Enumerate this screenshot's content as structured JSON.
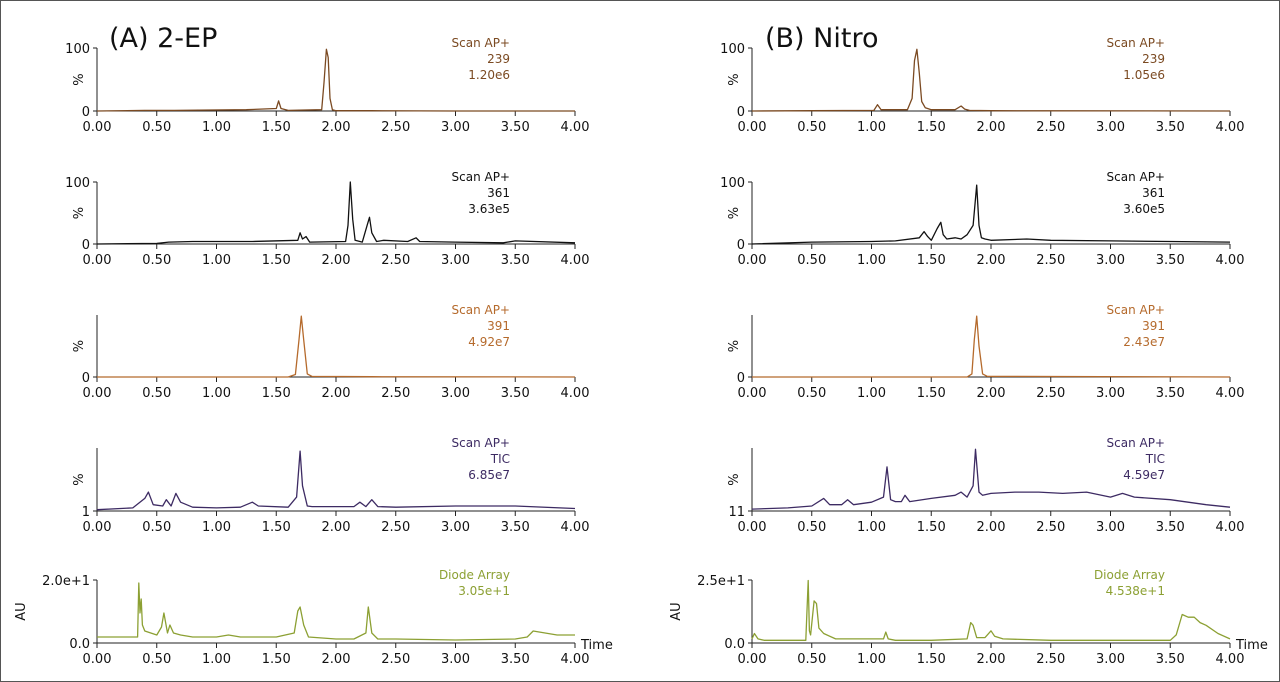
{
  "colors": {
    "brown": "#7b4a22",
    "black": "#111111",
    "orange": "#b56a2c",
    "purple": "#3d2b63",
    "olive": "#8ca033"
  },
  "panels": [
    {
      "title": "(A) 2-EP",
      "x_ticks": [
        "0.00",
        "0.50",
        "1.00",
        "1.50",
        "2.00",
        "2.50",
        "3.00",
        "3.50",
        "4.00"
      ],
      "time_label": "Time",
      "diode_ylabel": "AU"
    },
    {
      "title": "(B) Nitro",
      "x_ticks": [
        "0.00",
        "0.50",
        "1.00",
        "1.50",
        "2.00",
        "2.50",
        "3.00",
        "3.50",
        "4.00"
      ],
      "time_label": "Time",
      "diode_ylabel": "AU"
    }
  ],
  "chart_data": [
    {
      "type": "line",
      "panel": "A",
      "row": 0,
      "color": "brown",
      "info": [
        "Scan AP+",
        "239",
        "1.20e6"
      ],
      "ylabel": "%",
      "y_ticks": [
        "100",
        "0"
      ],
      "ylim": [
        0,
        100
      ],
      "xlim": [
        0,
        4
      ],
      "series": [
        {
          "x": [
            0,
            0.4,
            0.65,
            1.25,
            1.5,
            1.52,
            1.54,
            1.6,
            1.88,
            1.9,
            1.92,
            1.935,
            1.95,
            1.97,
            2.0,
            2.3,
            3.0,
            4.0
          ],
          "y": [
            0,
            1,
            1,
            2,
            4,
            16,
            4,
            1,
            2,
            45,
            98,
            85,
            20,
            2,
            0.5,
            0.5,
            0,
            0
          ]
        }
      ]
    },
    {
      "type": "line",
      "panel": "A",
      "row": 1,
      "color": "black",
      "info": [
        "Scan AP+",
        "361",
        "3.63e5"
      ],
      "ylabel": "%",
      "y_ticks": [
        "100",
        "0"
      ],
      "ylim": [
        0,
        100
      ],
      "xlim": [
        0,
        4
      ],
      "series": [
        {
          "x": [
            0,
            0.5,
            0.6,
            0.8,
            1.3,
            1.68,
            1.7,
            1.72,
            1.75,
            1.78,
            2.08,
            2.1,
            2.12,
            2.14,
            2.16,
            2.22,
            2.26,
            2.28,
            2.3,
            2.34,
            2.4,
            2.6,
            2.67,
            2.7,
            3.0,
            3.4,
            3.5,
            4.0
          ],
          "y": [
            0,
            1,
            3,
            4,
            4,
            6,
            18,
            8,
            12,
            3,
            4,
            30,
            100,
            40,
            6,
            3,
            30,
            43,
            18,
            4,
            6,
            4,
            10,
            4,
            3,
            2,
            5,
            2
          ]
        }
      ]
    },
    {
      "type": "line",
      "panel": "A",
      "row": 2,
      "color": "orange",
      "info": [
        "Scan AP+",
        "391",
        "4.92e7"
      ],
      "ylabel": "%",
      "y_ticks": [
        "0"
      ],
      "ylim": [
        0,
        100
      ],
      "xlim": [
        0,
        4
      ],
      "series": [
        {
          "x": [
            0,
            1.6,
            1.66,
            1.69,
            1.71,
            1.73,
            1.76,
            1.8,
            2.3,
            4.0
          ],
          "y": [
            0,
            0,
            4,
            60,
            98,
            60,
            5,
            1,
            0.5,
            0
          ]
        }
      ]
    },
    {
      "type": "line",
      "panel": "A",
      "row": 3,
      "color": "purple",
      "info": [
        "Scan AP+",
        "TIC",
        "6.85e7"
      ],
      "ylabel": "%",
      "y_ticks": [
        "1"
      ],
      "ylim": [
        0,
        100
      ],
      "xlim": [
        0,
        4
      ],
      "series": [
        {
          "x": [
            0,
            0.3,
            0.4,
            0.43,
            0.47,
            0.55,
            0.58,
            0.62,
            0.66,
            0.7,
            0.8,
            1.0,
            1.2,
            1.3,
            1.35,
            1.6,
            1.67,
            1.7,
            1.72,
            1.76,
            1.8,
            2.15,
            2.2,
            2.25,
            2.3,
            2.35,
            2.5,
            3.0,
            3.5,
            4.0
          ],
          "y": [
            2,
            5,
            20,
            30,
            10,
            8,
            18,
            8,
            28,
            14,
            6,
            5,
            6,
            14,
            8,
            6,
            22,
            95,
            40,
            8,
            7,
            7,
            14,
            7,
            18,
            7,
            6,
            8,
            8,
            4
          ]
        }
      ]
    },
    {
      "type": "line",
      "panel": "A",
      "row": 4,
      "color": "olive",
      "info": [
        "Diode Array",
        "3.05e+1"
      ],
      "ylabel": "AU",
      "y_ticks": [
        "2.0e+1",
        "0.0"
      ],
      "ylim": [
        -1,
        30.5
      ],
      "xlim": [
        0,
        4
      ],
      "series": [
        {
          "x": [
            0,
            0.3,
            0.34,
            0.35,
            0.36,
            0.37,
            0.38,
            0.4,
            0.45,
            0.5,
            0.54,
            0.56,
            0.59,
            0.61,
            0.64,
            0.7,
            0.8,
            1.0,
            1.1,
            1.2,
            1.3,
            1.5,
            1.65,
            1.68,
            1.7,
            1.73,
            1.77,
            2.0,
            2.15,
            2.2,
            2.25,
            2.27,
            2.3,
            2.35,
            2.5,
            3.0,
            3.5,
            3.6,
            3.65,
            3.75,
            3.85,
            4.0
          ],
          "y": [
            2,
            2,
            2,
            29,
            14,
            21,
            8,
            5,
            4,
            3,
            7,
            14,
            4,
            8,
            4,
            3,
            2,
            2,
            3,
            2,
            2,
            2,
            4,
            15,
            17,
            8,
            2,
            1,
            1,
            2.5,
            4,
            17,
            4,
            1,
            1,
            0.5,
            1,
            2,
            5,
            4,
            3,
            3
          ]
        }
      ]
    },
    {
      "type": "line",
      "panel": "B",
      "row": 0,
      "color": "brown",
      "info": [
        "Scan AP+",
        "239",
        "1.05e6"
      ],
      "ylabel": "%",
      "y_ticks": [
        "100",
        "0"
      ],
      "ylim": [
        0,
        100
      ],
      "xlim": [
        0,
        4
      ],
      "series": [
        {
          "x": [
            0,
            0.5,
            1.02,
            1.05,
            1.08,
            1.3,
            1.34,
            1.36,
            1.38,
            1.4,
            1.42,
            1.45,
            1.5,
            1.7,
            1.75,
            1.78,
            1.82,
            2.0,
            2.5,
            4.0
          ],
          "y": [
            0,
            0.5,
            1,
            10,
            2,
            2,
            20,
            80,
            98,
            60,
            15,
            5,
            2,
            2,
            8,
            3,
            1,
            0.5,
            0.3,
            0
          ]
        }
      ]
    },
    {
      "type": "line",
      "panel": "B",
      "row": 1,
      "color": "black",
      "info": [
        "Scan AP+",
        "361",
        "3.60e5"
      ],
      "ylabel": "%",
      "y_ticks": [
        "100",
        "0"
      ],
      "ylim": [
        0,
        100
      ],
      "xlim": [
        0,
        4
      ],
      "series": [
        {
          "x": [
            0,
            0.5,
            1.0,
            1.2,
            1.4,
            1.44,
            1.47,
            1.5,
            1.55,
            1.58,
            1.6,
            1.63,
            1.7,
            1.75,
            1.8,
            1.85,
            1.88,
            1.9,
            1.92,
            1.95,
            2.0,
            2.3,
            2.5,
            3.0,
            3.5,
            4.0
          ],
          "y": [
            0,
            3,
            4,
            5,
            10,
            20,
            12,
            6,
            25,
            35,
            15,
            8,
            10,
            8,
            15,
            30,
            95,
            30,
            10,
            8,
            6,
            8,
            6,
            5,
            4,
            3
          ]
        }
      ]
    },
    {
      "type": "line",
      "panel": "B",
      "row": 2,
      "color": "orange",
      "info": [
        "Scan AP+",
        "391",
        "2.43e7"
      ],
      "ylabel": "%",
      "y_ticks": [
        "0"
      ],
      "ylim": [
        0,
        100
      ],
      "xlim": [
        0,
        4
      ],
      "series": [
        {
          "x": [
            0,
            1.8,
            1.84,
            1.86,
            1.88,
            1.9,
            1.93,
            1.97,
            2.2,
            4.0
          ],
          "y": [
            0,
            0,
            5,
            60,
            98,
            50,
            5,
            1,
            1,
            0
          ]
        }
      ]
    },
    {
      "type": "line",
      "panel": "B",
      "row": 3,
      "color": "purple",
      "info": [
        "Scan AP+",
        "TIC",
        "4.59e7"
      ],
      "ylabel": "%",
      "y_ticks": [
        "11"
      ],
      "ylim": [
        0,
        100
      ],
      "xlim": [
        0,
        4
      ],
      "series": [
        {
          "x": [
            0,
            0.3,
            0.5,
            0.6,
            0.65,
            0.75,
            0.8,
            0.85,
            1.0,
            1.1,
            1.13,
            1.16,
            1.2,
            1.25,
            1.28,
            1.32,
            1.5,
            1.7,
            1.75,
            1.8,
            1.85,
            1.87,
            1.9,
            1.93,
            2.0,
            2.2,
            2.4,
            2.6,
            2.8,
            3.0,
            3.1,
            3.2,
            3.5,
            3.8,
            4.0
          ],
          "y": [
            3,
            5,
            8,
            20,
            10,
            10,
            18,
            10,
            14,
            22,
            70,
            18,
            15,
            15,
            25,
            15,
            20,
            25,
            30,
            22,
            40,
            98,
            30,
            25,
            28,
            30,
            30,
            28,
            30,
            22,
            28,
            22,
            18,
            10,
            6
          ]
        }
      ]
    },
    {
      "type": "line",
      "panel": "B",
      "row": 4,
      "color": "olive",
      "info": [
        "Diode Array",
        "4.538e+1"
      ],
      "ylabel": "AU",
      "y_ticks": [
        "2.5e+1",
        "0.0"
      ],
      "ylim": [
        -1,
        45.4
      ],
      "xlim": [
        0,
        4
      ],
      "series": [
        {
          "x": [
            0,
            0.02,
            0.05,
            0.1,
            0.3,
            0.45,
            0.47,
            0.48,
            0.49,
            0.52,
            0.54,
            0.56,
            0.6,
            0.7,
            0.9,
            1.1,
            1.12,
            1.14,
            1.2,
            1.5,
            1.8,
            1.83,
            1.85,
            1.88,
            1.95,
            2.0,
            2.03,
            2.1,
            2.5,
            3.0,
            3.5,
            3.55,
            3.6,
            3.65,
            3.7,
            3.75,
            3.8,
            3.9,
            4.0
          ],
          "y": [
            2,
            6,
            2,
            1,
            1,
            1,
            45,
            8,
            5,
            30,
            28,
            10,
            6,
            2,
            2,
            2,
            7,
            2,
            1,
            1,
            2,
            14,
            12,
            3,
            3,
            8,
            4,
            2,
            1,
            1,
            1,
            5,
            20,
            18,
            18,
            14,
            12,
            6,
            2
          ]
        }
      ]
    }
  ]
}
